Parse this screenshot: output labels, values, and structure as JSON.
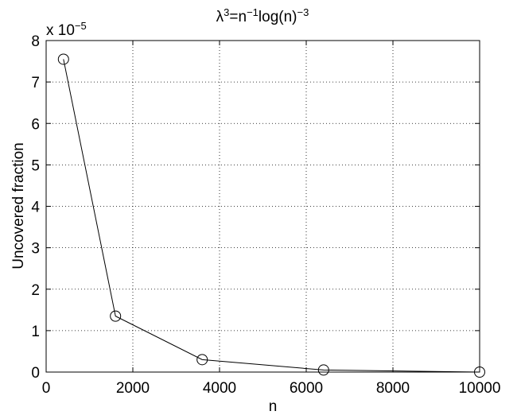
{
  "chart_data": {
    "type": "line",
    "title": {
      "base": "λ",
      "base_sup": "3",
      "mid": "=n",
      "mid_sup": "−1",
      "tail": "log(n)",
      "tail_sup": "−3"
    },
    "xlabel": "n",
    "ylabel": "Uncovered fraction",
    "y_multiplier": {
      "base": "x 10",
      "exponent": "−5"
    },
    "xlim": [
      0,
      10000
    ],
    "ylim": [
      0,
      8
    ],
    "xticks": [
      0,
      2000,
      4000,
      6000,
      8000,
      10000
    ],
    "xtick_labels": [
      "0",
      "2000",
      "4000",
      "6000",
      "8000",
      "10000"
    ],
    "yticks": [
      0,
      1,
      2,
      3,
      4,
      5,
      6,
      7,
      8
    ],
    "ytick_labels": [
      "0",
      "1",
      "2",
      "3",
      "4",
      "5",
      "6",
      "7",
      "8"
    ],
    "grid": true,
    "series": [
      {
        "marker": "circle",
        "color": "#000000",
        "x": [
          400,
          1600,
          3600,
          6400,
          10000
        ],
        "y": [
          7.55,
          1.35,
          0.3,
          0.05,
          0.0
        ]
      }
    ]
  }
}
